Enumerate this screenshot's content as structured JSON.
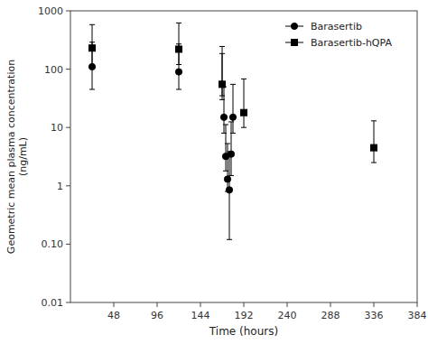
{
  "chart_data": {
    "type": "scatter",
    "title": "",
    "x_label": "Time (hours)",
    "y_label": "Geometric mean plasma concentration\n(ng/mL)",
    "xlim": [
      0,
      384
    ],
    "xticks": [
      48,
      96,
      144,
      192,
      240,
      288,
      336,
      384
    ],
    "ylim": [
      0.01,
      1000
    ],
    "yticks": [
      0.01,
      {
        "value": 0.1,
        "label": "0.10"
      },
      1,
      10,
      100,
      1000
    ],
    "log": "y",
    "grid": false,
    "legend": "upper right",
    "series": [
      {
        "name": "Barasertib",
        "color": "#000000",
        "marker": "circle",
        "x": [
          24,
          120,
          168,
          170,
          172,
          174,
          176,
          178,
          180
        ],
        "values": [
          110,
          90,
          55,
          15,
          3.2,
          1.3,
          0.85,
          3.5,
          15
        ],
        "error_minus": [
          65,
          45,
          25,
          7,
          1.4,
          0.5,
          0.73,
          2.0,
          7
        ],
        "error_plus": [
          180,
          180,
          130,
          35,
          8,
          4,
          3,
          9,
          40
        ]
      },
      {
        "name": "Barasertib-hQPA",
        "color": "#000000",
        "marker": "square",
        "x": [
          24,
          120,
          168,
          192,
          336
        ],
        "values": [
          230,
          220,
          55,
          18,
          4.5
        ],
        "error_minus": [
          120,
          100,
          20,
          8,
          2.0
        ],
        "error_plus": [
          350,
          400,
          190,
          50,
          8.5
        ]
      }
    ]
  }
}
